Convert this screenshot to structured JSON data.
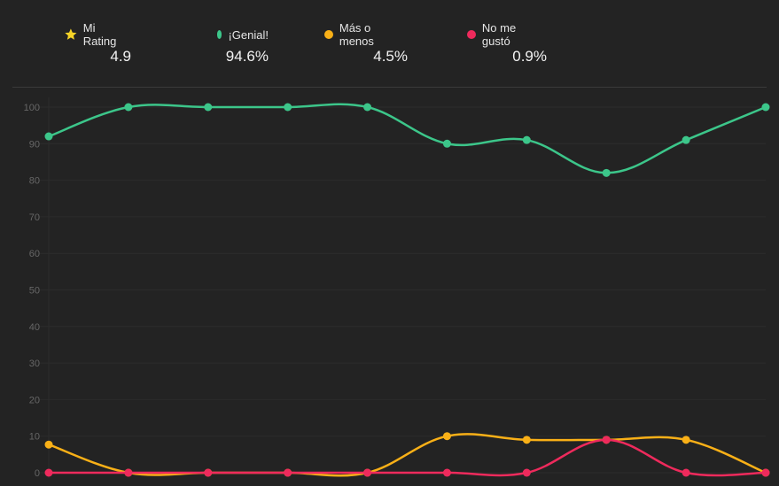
{
  "summary": [
    {
      "label": "Mi Rating",
      "value": "4.9",
      "icon": "star-icon",
      "color": "#f5d327"
    },
    {
      "label": "¡Genial!",
      "value": "94.6%",
      "icon": "dot-icon",
      "color": "#3cc68a"
    },
    {
      "label": "Más o menos",
      "value": "4.5%",
      "icon": "dot-icon",
      "color": "#f9b017"
    },
    {
      "label": "No me gustó",
      "value": "0.9%",
      "icon": "dot-icon",
      "color": "#ee2a5c"
    }
  ],
  "chart_data": {
    "type": "line",
    "title": "",
    "xlabel": "",
    "ylabel": "",
    "ylim": [
      0,
      100
    ],
    "yticks": [
      0,
      10,
      20,
      30,
      40,
      50,
      60,
      70,
      80,
      90,
      100
    ],
    "grid": true,
    "x": [
      1,
      2,
      3,
      4,
      5,
      6,
      7,
      8,
      9,
      10
    ],
    "series": [
      {
        "name": "¡Genial!",
        "color": "#3cc68a",
        "values": [
          92,
          100,
          100,
          100,
          100,
          90,
          91,
          82,
          91,
          100
        ]
      },
      {
        "name": "Más o menos",
        "color": "#f9b017",
        "values": [
          7.7,
          0,
          0,
          0,
          0,
          10,
          9,
          9,
          9,
          0
        ]
      },
      {
        "name": "No me gustó",
        "color": "#ee2a5c",
        "values": [
          0,
          0,
          0,
          0,
          0,
          0,
          0,
          9,
          0,
          0
        ]
      }
    ]
  }
}
